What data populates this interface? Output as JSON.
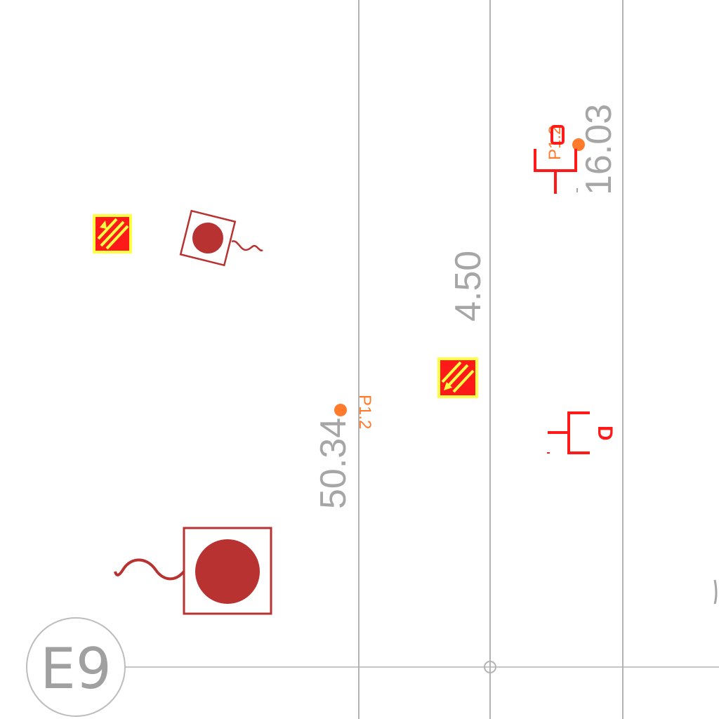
{
  "grid": {
    "bubble_label": "E9",
    "line_color": "#b3b3b3"
  },
  "dimensions": [
    {
      "id": "dim-50-34",
      "text": "50.34"
    },
    {
      "id": "dim-4-50",
      "text": "4.50"
    },
    {
      "id": "dim-16-03",
      "text": "16.03"
    }
  ],
  "tags": [
    {
      "id": "tag-p12-lower",
      "text": "P1.2"
    },
    {
      "id": "tag-p12-upper",
      "text": "P1.2"
    }
  ],
  "symbol_glyph": "D",
  "colors": {
    "fixture_fill": "#b83232",
    "sprinkler_red": "#ff1a1a",
    "hatch_yellow": "#ffff44",
    "tag_orange": "#ff7a2a",
    "text_gray": "#a6a6a6"
  },
  "icons": [
    "pendant-fixture-icon",
    "hatched-marker-icon",
    "tee-fitting-icon",
    "point-marker-icon"
  ]
}
